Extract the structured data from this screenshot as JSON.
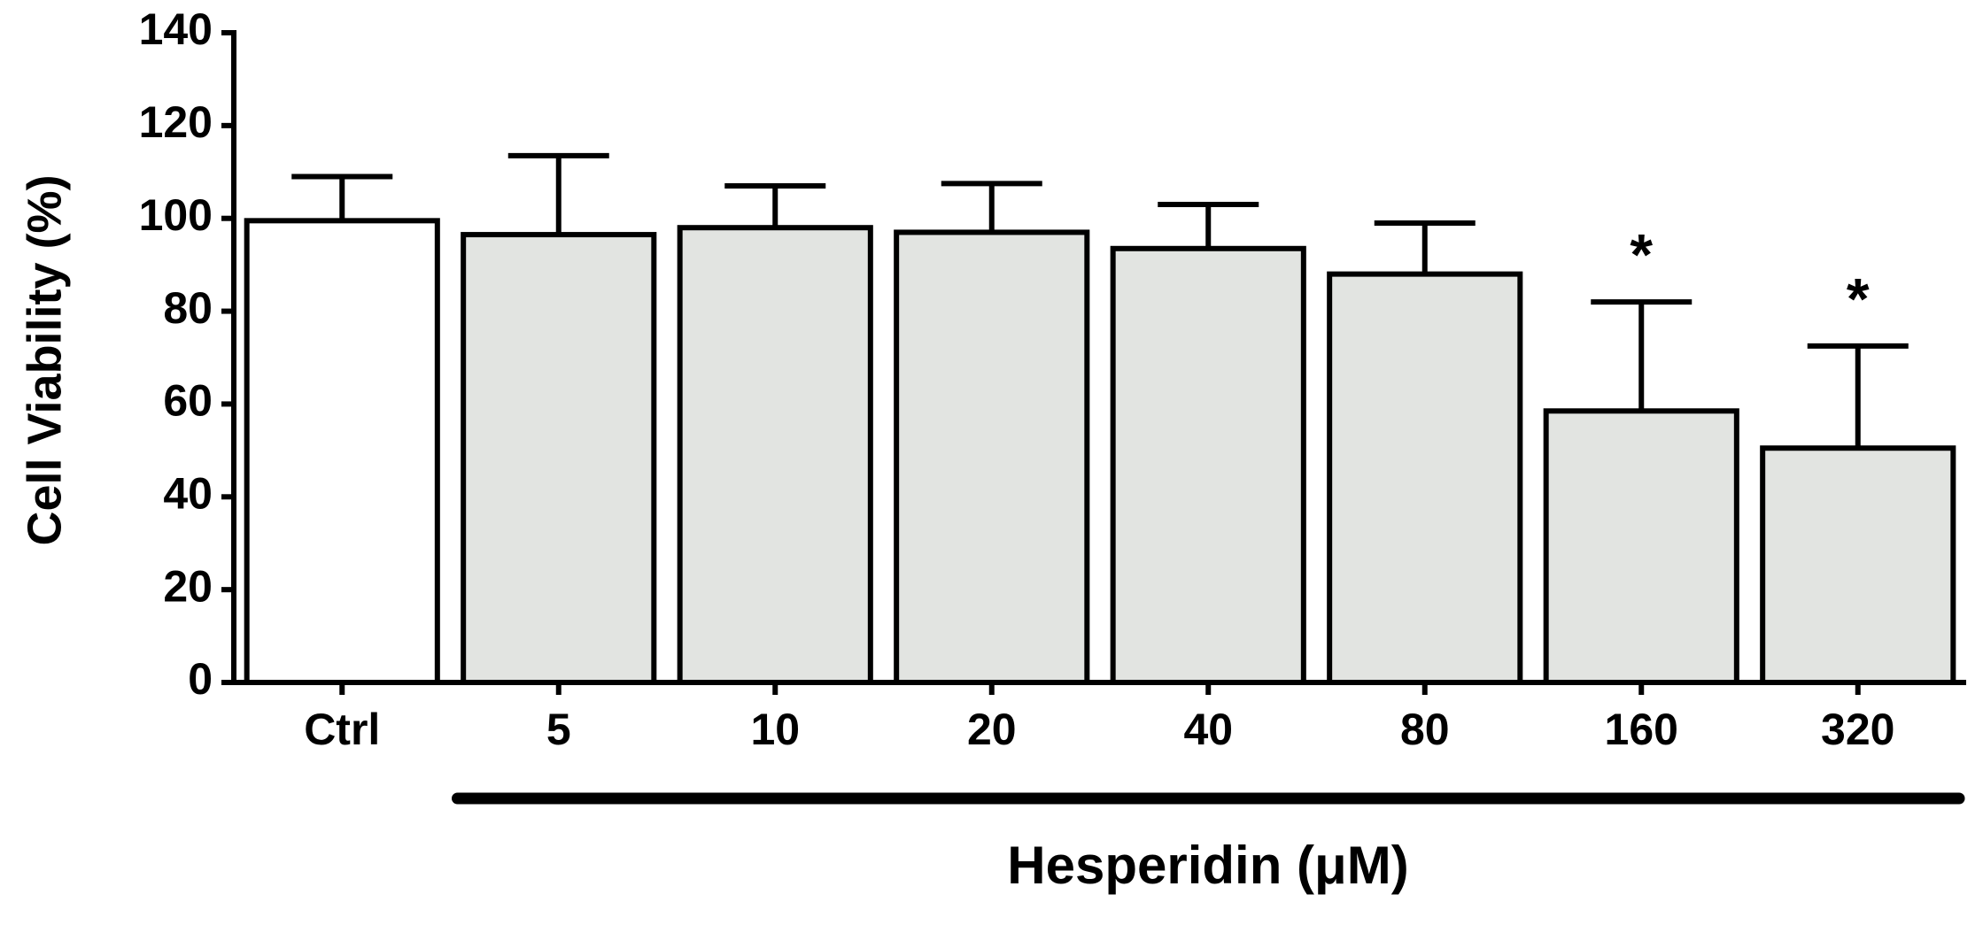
{
  "chart_data": {
    "type": "bar",
    "y_label": "Cell Viability (%)",
    "x_label": "Hesperidin (μM)",
    "categories": [
      "Ctrl",
      "5",
      "10",
      "20",
      "40",
      "80",
      "160",
      "320"
    ],
    "values": [
      99.5,
      96.5,
      98,
      97,
      93.5,
      88,
      58.5,
      50.5
    ],
    "errors": [
      9.5,
      17,
      9,
      10.5,
      9.5,
      11,
      23.5,
      22
    ],
    "colors": [
      "#ffffff",
      "#e2e4e1",
      "#e2e4e1",
      "#e2e4e1",
      "#e2e4e1",
      "#e2e4e1",
      "#e2e4e1",
      "#e2e4e1"
    ],
    "annotations": [
      {
        "text": "*",
        "category": "160"
      },
      {
        "text": "*",
        "category": "320"
      }
    ],
    "ylim": [
      0,
      140
    ],
    "yticks": [
      0,
      20,
      40,
      60,
      80,
      100,
      120,
      140
    ],
    "grid": false
  }
}
